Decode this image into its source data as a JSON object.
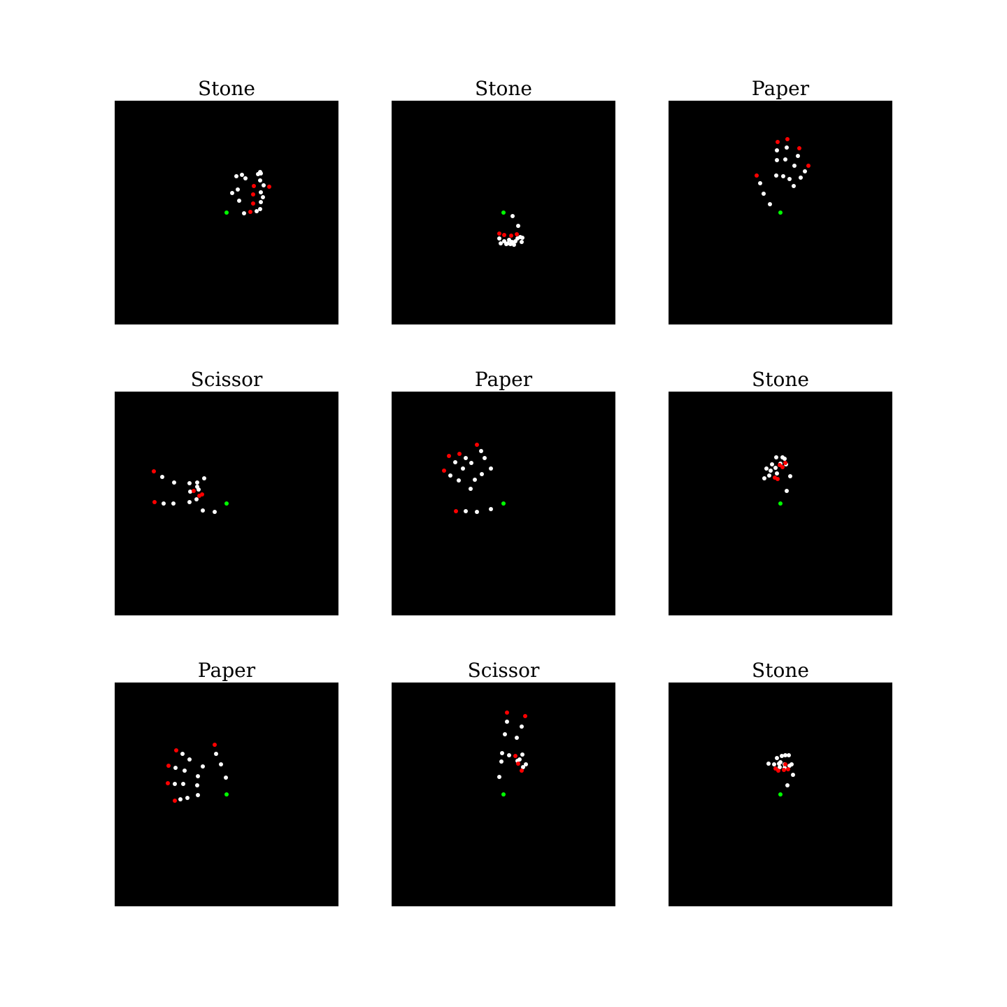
{
  "chart_data": {
    "type": "scatter",
    "description_axes": "hand landmark scatter on black canvas, axes hidden, coordinates in pixels of a 320x320 frame (origin top-left)",
    "xlim": [
      0,
      320
    ],
    "ylim": [
      0,
      320
    ],
    "point_colors": {
      "wrist": "#00ff00",
      "fingertip": "#ff0000",
      "joint": "#ffffff"
    },
    "panels": [
      {
        "title": "Stone",
        "wrist": [
          [
            160,
            160
          ]
        ],
        "fingertips": [
          [
            194,
            159
          ],
          [
            198,
            147
          ],
          [
            198,
            134
          ],
          [
            199,
            122
          ],
          [
            221,
            123
          ]
        ],
        "joints": [
          [
            185,
            161
          ],
          [
            203,
            158
          ],
          [
            208,
            155
          ],
          [
            209,
            145
          ],
          [
            212,
            138
          ],
          [
            209,
            131
          ],
          [
            208,
            114
          ],
          [
            209,
            104
          ],
          [
            205,
            105
          ],
          [
            182,
            106
          ],
          [
            168,
            132
          ],
          [
            178,
            143
          ],
          [
            187,
            111
          ],
          [
            208,
            102
          ],
          [
            174,
            108
          ],
          [
            176,
            127
          ],
          [
            213,
            121
          ]
        ]
      },
      {
        "title": "Stone",
        "wrist": [
          [
            160,
            160
          ]
        ],
        "fingertips": [
          [
            154,
            190
          ],
          [
            161,
            192
          ],
          [
            171,
            193
          ],
          [
            179,
            191
          ]
        ],
        "joints": [
          [
            173,
            165
          ],
          [
            181,
            179
          ],
          [
            154,
            197
          ],
          [
            156,
            204
          ],
          [
            161,
            201
          ],
          [
            164,
            205
          ],
          [
            166,
            204
          ],
          [
            170,
            205
          ],
          [
            172,
            202
          ],
          [
            175,
            206
          ],
          [
            177,
            201
          ],
          [
            180,
            197
          ],
          [
            186,
            202
          ],
          [
            187,
            196
          ],
          [
            184,
            195
          ],
          [
            168,
            199
          ]
        ]
      },
      {
        "title": "Paper",
        "fingertips": [
          [
            126,
            107
          ],
          [
            156,
            59
          ],
          [
            170,
            55
          ],
          [
            187,
            68
          ],
          [
            200,
            93
          ]
        ],
        "wrist": [
          [
            160,
            160
          ]
        ],
        "joints": [
          [
            145,
            148
          ],
          [
            136,
            133
          ],
          [
            131,
            118
          ],
          [
            155,
            71
          ],
          [
            155,
            85
          ],
          [
            154,
            107
          ],
          [
            169,
            67
          ],
          [
            167,
            84
          ],
          [
            164,
            108
          ],
          [
            185,
            79
          ],
          [
            180,
            93
          ],
          [
            173,
            112
          ],
          [
            195,
            101
          ],
          [
            189,
            110
          ],
          [
            179,
            122
          ]
        ]
      },
      {
        "title": "Scissor",
        "wrist": [
          [
            160,
            160
          ]
        ],
        "fingertips": [
          [
            56,
            114
          ],
          [
            57,
            158
          ],
          [
            113,
            142
          ],
          [
            121,
            149
          ],
          [
            125,
            147
          ]
        ],
        "joints": [
          [
            143,
            172
          ],
          [
            126,
            170
          ],
          [
            68,
            122
          ],
          [
            85,
            130
          ],
          [
            107,
            131
          ],
          [
            118,
            130
          ],
          [
            118,
            136
          ],
          [
            128,
            124
          ],
          [
            120,
            140
          ],
          [
            108,
            143
          ],
          [
            107,
            158
          ],
          [
            117,
            154
          ],
          [
            70,
            160
          ],
          [
            84,
            160
          ]
        ]
      },
      {
        "title": "Paper",
        "wrist": [
          [
            160,
            160
          ]
        ],
        "fingertips": [
          [
            75,
            113
          ],
          [
            82,
            92
          ],
          [
            97,
            89
          ],
          [
            122,
            76
          ],
          [
            92,
            171
          ]
        ],
        "joints": [
          [
            142,
            168
          ],
          [
            122,
            172
          ],
          [
            106,
            171
          ],
          [
            84,
            120
          ],
          [
            96,
            127
          ],
          [
            113,
            139
          ],
          [
            91,
            101
          ],
          [
            102,
            110
          ],
          [
            119,
            126
          ],
          [
            106,
            95
          ],
          [
            114,
            102
          ],
          [
            129,
            118
          ],
          [
            128,
            85
          ],
          [
            133,
            95
          ],
          [
            142,
            110
          ]
        ]
      },
      {
        "title": "Stone",
        "wrist": [
          [
            160,
            160
          ]
        ],
        "fingertips": [
          [
            152,
            123
          ],
          [
            159,
            105
          ],
          [
            167,
            102
          ],
          [
            156,
            125
          ],
          [
            163,
            108
          ]
        ],
        "joints": [
          [
            169,
            142
          ],
          [
            174,
            121
          ],
          [
            137,
            124
          ],
          [
            140,
            110
          ],
          [
            146,
            113
          ],
          [
            148,
            104
          ],
          [
            154,
            94
          ],
          [
            155,
            117
          ],
          [
            163,
            94
          ],
          [
            166,
            96
          ],
          [
            168,
            104
          ],
          [
            144,
            120
          ],
          [
            160,
            103
          ],
          [
            153,
            109
          ]
        ]
      },
      {
        "title": "Paper",
        "wrist": [
          [
            160,
            160
          ]
        ],
        "fingertips": [
          [
            143,
            89
          ],
          [
            88,
            97
          ],
          [
            77,
            119
          ],
          [
            76,
            144
          ],
          [
            86,
            169
          ]
        ],
        "joints": [
          [
            159,
            136
          ],
          [
            152,
            117
          ],
          [
            145,
            102
          ],
          [
            97,
            102
          ],
          [
            107,
            110
          ],
          [
            126,
            120
          ],
          [
            87,
            122
          ],
          [
            100,
            126
          ],
          [
            119,
            134
          ],
          [
            86,
            145
          ],
          [
            98,
            145
          ],
          [
            118,
            147
          ],
          [
            94,
            167
          ],
          [
            104,
            165
          ],
          [
            119,
            161
          ]
        ]
      },
      {
        "title": "Scissor",
        "wrist": [
          [
            160,
            160
          ]
        ],
        "fingertips": [
          [
            165,
            43
          ],
          [
            191,
            48
          ],
          [
            177,
            105
          ],
          [
            181,
            116
          ],
          [
            186,
            126
          ]
        ],
        "joints": [
          [
            154,
            135
          ],
          [
            157,
            113
          ],
          [
            158,
            101
          ],
          [
            168,
            104
          ],
          [
            162,
            74
          ],
          [
            165,
            56
          ],
          [
            179,
            79
          ],
          [
            186,
            63
          ],
          [
            183,
            110
          ],
          [
            188,
            121
          ],
          [
            192,
            117
          ],
          [
            187,
            103
          ],
          [
            180,
            112
          ]
        ]
      },
      {
        "title": "Stone",
        "wrist": [
          [
            160,
            160
          ]
        ],
        "fingertips": [
          [
            153,
            123
          ],
          [
            157,
            126
          ],
          [
            165,
            125
          ],
          [
            171,
            124
          ],
          [
            167,
            117
          ]
        ],
        "joints": [
          [
            143,
            116
          ],
          [
            151,
            117
          ],
          [
            155,
            108
          ],
          [
            160,
            114
          ],
          [
            159,
            121
          ],
          [
            162,
            105
          ],
          [
            166,
            117
          ],
          [
            167,
            104
          ],
          [
            166,
            122
          ],
          [
            172,
            104
          ],
          [
            173,
            119
          ],
          [
            176,
            117
          ],
          [
            178,
            132
          ],
          [
            170,
            147
          ],
          [
            158,
            116
          ]
        ]
      }
    ]
  }
}
